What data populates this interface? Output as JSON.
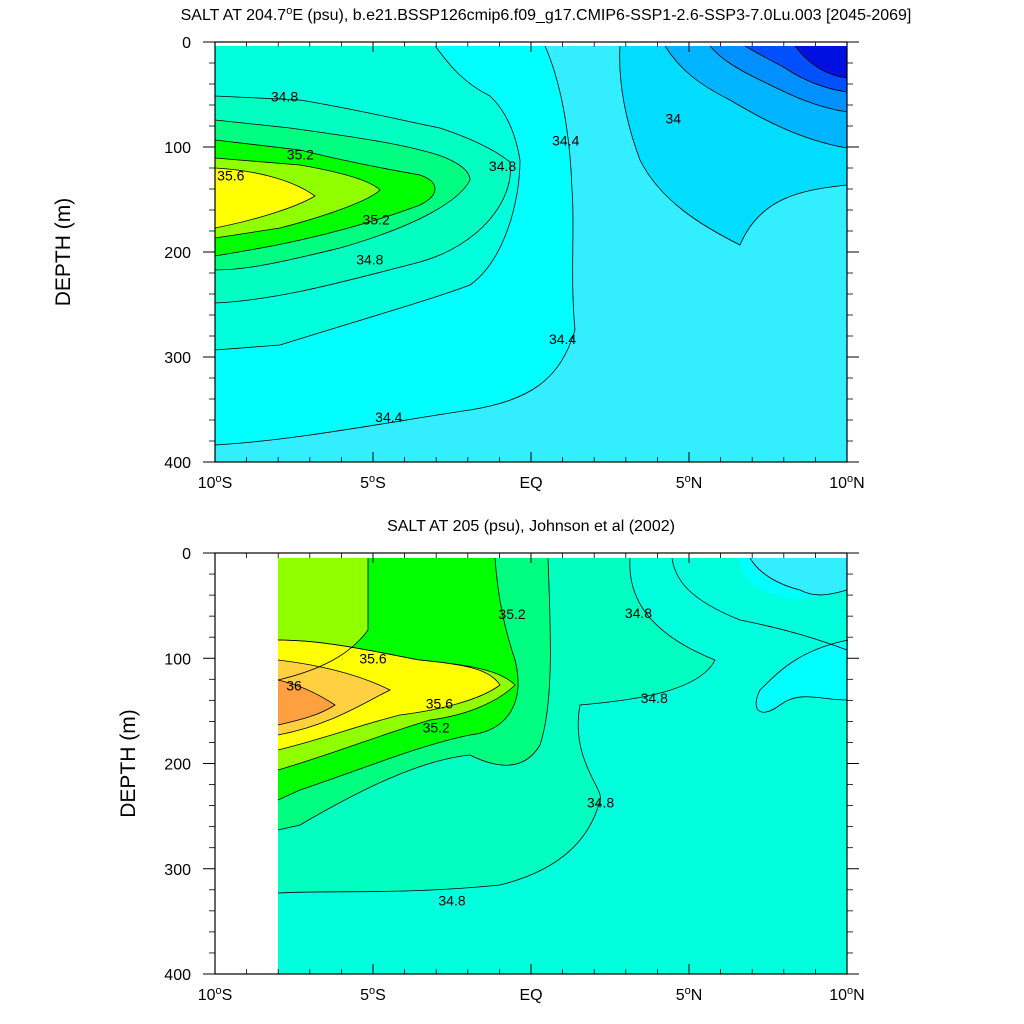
{
  "chart_data": [
    {
      "type": "contour",
      "title": "SALT AT 204.7°E (psu), b.e21.BSSP126cmip6.f09_g17.CMIP6-SSP1-2.6-SSP3-7.0Lu.003 [2045-2069]",
      "xlabel": "",
      "ylabel": "DEPTH (m)",
      "x_ticks": [
        "10°S",
        "5°S",
        "EQ",
        "5°N",
        "10°N"
      ],
      "x_tick_values": [
        -10,
        -5,
        0,
        5,
        10
      ],
      "y_ticks": [
        "0",
        "100",
        "200",
        "300",
        "400"
      ],
      "y_tick_values": [
        0,
        100,
        200,
        300,
        400
      ],
      "xlim": [
        -10,
        10
      ],
      "ylim": [
        400,
        0
      ],
      "contour_interval": 0.2,
      "contour_labels": [
        {
          "text": "34.8",
          "lat": -7.8,
          "depth": 52
        },
        {
          "text": "35.2",
          "lat": -7.3,
          "depth": 107
        },
        {
          "text": "35.6",
          "lat": -9.5,
          "depth": 127
        },
        {
          "text": "35.2",
          "lat": -4.9,
          "depth": 169
        },
        {
          "text": "34.8",
          "lat": -5.1,
          "depth": 207
        },
        {
          "text": "34.8",
          "lat": -0.9,
          "depth": 118
        },
        {
          "text": "34.4",
          "lat": 1.1,
          "depth": 94
        },
        {
          "text": "34",
          "lat": 4.5,
          "depth": 73
        },
        {
          "text": "34.4",
          "lat": 1.0,
          "depth": 283
        },
        {
          "text": "34.4",
          "lat": -4.5,
          "depth": 357
        }
      ],
      "salinity_max_approx": 35.8,
      "salinity_min_approx": 33.4
    },
    {
      "type": "contour",
      "title": "SALT AT 205 (psu), Johnson et al (2002)",
      "xlabel": "",
      "ylabel": "DEPTH (m)",
      "x_ticks": [
        "10°S",
        "5°S",
        "EQ",
        "5°N",
        "10°N"
      ],
      "x_tick_values": [
        -10,
        -5,
        0,
        5,
        10
      ],
      "y_ticks": [
        "0",
        "100",
        "200",
        "300",
        "400"
      ],
      "y_tick_values": [
        0,
        100,
        200,
        300,
        400
      ],
      "xlim": [
        -10,
        10
      ],
      "ylim": [
        400,
        0
      ],
      "data_lat_range": [
        -8,
        10
      ],
      "contour_interval": 0.2,
      "contour_labels": [
        {
          "text": "35.2",
          "lat": -0.6,
          "depth": 58
        },
        {
          "text": "34.8",
          "lat": 3.4,
          "depth": 57
        },
        {
          "text": "35.6",
          "lat": -5.0,
          "depth": 100
        },
        {
          "text": "36",
          "lat": -7.5,
          "depth": 126
        },
        {
          "text": "35.6",
          "lat": -2.9,
          "depth": 143
        },
        {
          "text": "35.2",
          "lat": -3.0,
          "depth": 166
        },
        {
          "text": "34.8",
          "lat": 3.9,
          "depth": 138
        },
        {
          "text": "34.8",
          "lat": 2.2,
          "depth": 237
        },
        {
          "text": "34.8",
          "lat": -2.5,
          "depth": 330
        }
      ],
      "salinity_max_approx": 36.2,
      "salinity_min_approx": 34.4
    }
  ]
}
